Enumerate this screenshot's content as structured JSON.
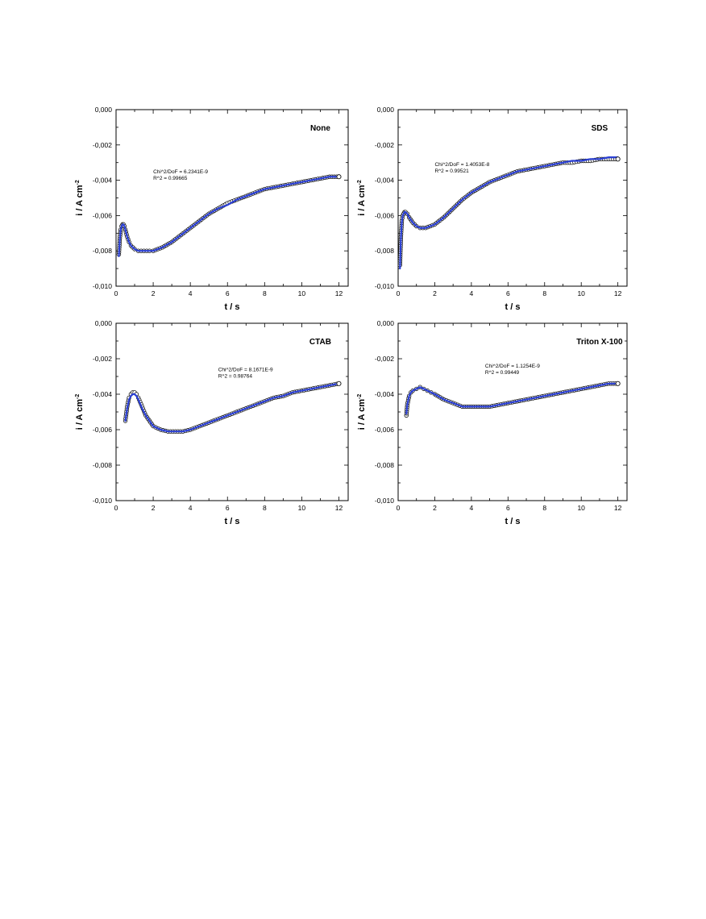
{
  "chart_data": [
    {
      "type": "scatter",
      "panel_label": "None",
      "xlabel": "t / s",
      "ylabel_main": "i / A cm",
      "ylabel_sup": "-2",
      "xlim": [
        0,
        12.5
      ],
      "ylim": [
        -0.01,
        0.0
      ],
      "x_ticks": [
        "0",
        "2",
        "4",
        "6",
        "8",
        "10",
        "12"
      ],
      "y_ticks": [
        "0,000",
        "-0,002",
        "-0,004",
        "-0,006",
        "-0,008",
        "-0,010"
      ],
      "stats_line1": "Chi^2/DoF = 6.2341E-9",
      "stats_line2": "R^2    =  0.99665",
      "colors": {
        "fit": "#2a3fd4",
        "data": "#111111"
      },
      "series": [
        {
          "role": "data",
          "marker": "open-circle",
          "x": [
            0.15,
            0.2,
            0.25,
            0.3,
            0.35,
            0.4,
            0.45,
            0.5,
            0.6,
            0.7,
            0.8,
            1.0,
            1.2,
            1.5,
            1.8,
            2.0,
            2.5,
            3.0,
            3.5,
            4.0,
            4.5,
            5.0,
            5.5,
            6.0,
            6.5,
            7.0,
            7.5,
            8.0,
            8.5,
            9.0,
            9.5,
            10.0,
            10.5,
            11.0,
            11.5,
            12.0
          ],
          "y": [
            -0.0082,
            -0.0073,
            -0.0068,
            -0.0066,
            -0.0065,
            -0.0065,
            -0.0066,
            -0.0068,
            -0.0072,
            -0.0075,
            -0.0077,
            -0.0079,
            -0.008,
            -0.008,
            -0.008,
            -0.008,
            -0.0078,
            -0.0075,
            -0.0071,
            -0.0067,
            -0.0063,
            -0.0059,
            -0.0056,
            -0.0053,
            -0.0051,
            -0.0049,
            -0.0047,
            -0.0045,
            -0.0044,
            -0.0043,
            -0.0042,
            -0.0041,
            -0.004,
            -0.0039,
            -0.0038,
            -0.0038
          ]
        },
        {
          "role": "fit",
          "x": [
            0.15,
            0.2,
            0.25,
            0.3,
            0.35,
            0.4,
            0.45,
            0.5,
            0.6,
            0.7,
            0.8,
            1.0,
            1.2,
            1.5,
            1.8,
            2.0,
            2.5,
            3.0,
            3.5,
            4.0,
            4.5,
            5.0,
            5.5,
            6.0,
            6.5,
            7.0,
            7.5,
            8.0,
            8.5,
            9.0,
            9.5,
            10.0,
            10.5,
            11.0,
            11.5,
            12.0
          ],
          "y": [
            -0.0083,
            -0.0074,
            -0.0068,
            -0.0066,
            -0.0065,
            -0.0065,
            -0.0066,
            -0.0068,
            -0.0072,
            -0.0075,
            -0.0077,
            -0.0079,
            -0.008,
            -0.008,
            -0.008,
            -0.008,
            -0.0078,
            -0.0075,
            -0.0071,
            -0.0067,
            -0.0063,
            -0.0059,
            -0.0056,
            -0.0054,
            -0.0051,
            -0.0049,
            -0.0047,
            -0.0045,
            -0.0044,
            -0.0043,
            -0.0042,
            -0.0041,
            -0.004,
            -0.0039,
            -0.0038,
            -0.0038
          ]
        }
      ]
    },
    {
      "type": "scatter",
      "panel_label": "SDS",
      "xlabel": "t / s",
      "ylabel_main": "i / A cm",
      "ylabel_sup": "-2",
      "xlim": [
        0,
        12.5
      ],
      "ylim": [
        -0.01,
        0.0
      ],
      "x_ticks": [
        "0",
        "2",
        "4",
        "6",
        "8",
        "10",
        "12"
      ],
      "y_ticks": [
        "0,000",
        "-0,002",
        "-0,004",
        "-0,006",
        "-0,008",
        "-0,010"
      ],
      "stats_line1": "Chi^2/DoF = 1.4053E-8",
      "stats_line2": "R^2    =  0.99521",
      "colors": {
        "fit": "#2a3fd4",
        "data": "#111111"
      },
      "series": [
        {
          "role": "data",
          "marker": "open-circle",
          "x": [
            0.1,
            0.15,
            0.2,
            0.25,
            0.3,
            0.35,
            0.4,
            0.5,
            0.6,
            0.8,
            1.0,
            1.2,
            1.5,
            2.0,
            2.5,
            3.0,
            3.5,
            4.0,
            4.5,
            5.0,
            5.5,
            6.0,
            6.5,
            7.0,
            7.5,
            8.0,
            8.5,
            9.0,
            9.5,
            10.0,
            10.5,
            11.0,
            11.5,
            12.0
          ],
          "y": [
            -0.0088,
            -0.0072,
            -0.0063,
            -0.006,
            -0.0059,
            -0.0058,
            -0.0058,
            -0.0059,
            -0.0061,
            -0.0064,
            -0.0066,
            -0.0067,
            -0.0067,
            -0.0065,
            -0.0061,
            -0.0056,
            -0.0051,
            -0.0047,
            -0.0044,
            -0.0041,
            -0.0039,
            -0.0037,
            -0.0035,
            -0.0034,
            -0.0033,
            -0.0032,
            -0.0031,
            -0.003,
            -0.003,
            -0.0029,
            -0.0029,
            -0.0028,
            -0.0028,
            -0.0028
          ]
        },
        {
          "role": "fit",
          "x": [
            0.1,
            0.15,
            0.2,
            0.25,
            0.3,
            0.35,
            0.4,
            0.5,
            0.6,
            0.8,
            1.0,
            1.2,
            1.5,
            2.0,
            2.5,
            3.0,
            3.5,
            4.0,
            4.5,
            5.0,
            5.5,
            6.0,
            6.5,
            7.0,
            7.5,
            8.0,
            8.5,
            9.0,
            9.5,
            10.0,
            10.5,
            11.0,
            11.5,
            12.0
          ],
          "y": [
            -0.009,
            -0.0073,
            -0.0064,
            -0.006,
            -0.0059,
            -0.0058,
            -0.0058,
            -0.0059,
            -0.0061,
            -0.0064,
            -0.0066,
            -0.0067,
            -0.0067,
            -0.0065,
            -0.0061,
            -0.0056,
            -0.0051,
            -0.0047,
            -0.0044,
            -0.0041,
            -0.0039,
            -0.0037,
            -0.0035,
            -0.0034,
            -0.0033,
            -0.0032,
            -0.0031,
            -0.003,
            -0.0029,
            -0.0029,
            -0.0028,
            -0.0028,
            -0.0027,
            -0.0027
          ]
        }
      ]
    },
    {
      "type": "scatter",
      "panel_label": "CTAB",
      "xlabel": "t / s",
      "ylabel_main": "i / A cm",
      "ylabel_sup": "-2",
      "xlim": [
        0,
        12.5
      ],
      "ylim": [
        -0.01,
        0.0
      ],
      "x_ticks": [
        "0",
        "2",
        "4",
        "6",
        "8",
        "10",
        "12"
      ],
      "y_ticks": [
        "0,000",
        "-0,002",
        "-0,004",
        "-0,006",
        "-0,008",
        "-0,010"
      ],
      "stats_line1": "Chi^2/DoF = 8.1671E-9",
      "stats_line2": "R^2    =  0.98764",
      "colors": {
        "fit": "#2a3fd4",
        "data": "#111111"
      },
      "series": [
        {
          "role": "data",
          "marker": "open-circle",
          "x": [
            0.5,
            0.6,
            0.7,
            0.8,
            0.9,
            1.0,
            1.1,
            1.2,
            1.4,
            1.6,
            1.8,
            2.0,
            2.4,
            2.8,
            3.2,
            3.6,
            4.0,
            4.5,
            5.0,
            5.5,
            6.0,
            6.5,
            7.0,
            7.5,
            8.0,
            8.5,
            9.0,
            9.5,
            10.0,
            10.5,
            11.0,
            11.5,
            12.0
          ],
          "y": [
            -0.0055,
            -0.0047,
            -0.0042,
            -0.004,
            -0.0039,
            -0.0039,
            -0.004,
            -0.0042,
            -0.0047,
            -0.0052,
            -0.0055,
            -0.0058,
            -0.006,
            -0.0061,
            -0.0061,
            -0.0061,
            -0.006,
            -0.0058,
            -0.0056,
            -0.0054,
            -0.0052,
            -0.005,
            -0.0048,
            -0.0046,
            -0.0044,
            -0.0042,
            -0.0041,
            -0.0039,
            -0.0038,
            -0.0037,
            -0.0036,
            -0.0035,
            -0.0034
          ]
        },
        {
          "role": "fit",
          "x": [
            0.5,
            0.6,
            0.7,
            0.8,
            0.9,
            1.0,
            1.1,
            1.2,
            1.4,
            1.6,
            1.8,
            2.0,
            2.4,
            2.8,
            3.2,
            3.6,
            4.0,
            4.5,
            5.0,
            5.5,
            6.0,
            6.5,
            7.0,
            7.5,
            8.0,
            8.5,
            9.0,
            9.5,
            10.0,
            10.5,
            11.0,
            11.5,
            12.0
          ],
          "y": [
            -0.0055,
            -0.0048,
            -0.0043,
            -0.0041,
            -0.004,
            -0.004,
            -0.0041,
            -0.0043,
            -0.0048,
            -0.0052,
            -0.0055,
            -0.0058,
            -0.006,
            -0.0061,
            -0.0061,
            -0.0061,
            -0.006,
            -0.0058,
            -0.0056,
            -0.0054,
            -0.0052,
            -0.005,
            -0.0048,
            -0.0046,
            -0.0044,
            -0.0042,
            -0.0041,
            -0.0039,
            -0.0038,
            -0.0037,
            -0.0036,
            -0.0035,
            -0.0034
          ]
        }
      ]
    },
    {
      "type": "scatter",
      "panel_label": "Triton X-100",
      "xlabel": "t / s",
      "ylabel_main": "i / A cm",
      "ylabel_sup": "-2",
      "xlim": [
        0,
        12.5
      ],
      "ylim": [
        -0.01,
        0.0
      ],
      "x_ticks": [
        "0",
        "2",
        "4",
        "6",
        "8",
        "10",
        "12"
      ],
      "y_ticks": [
        "0,000",
        "-0,002",
        "-0,004",
        "-0,006",
        "-0,008",
        "-0,010"
      ],
      "stats_line1": "Chi^2/DoF = 1.1254E-9",
      "stats_line2": "R^2    =  0.99449",
      "colors": {
        "fit": "#2a3fd4",
        "data": "#111111"
      },
      "series": [
        {
          "role": "data",
          "marker": "open-circle",
          "x": [
            0.45,
            0.5,
            0.6,
            0.7,
            0.8,
            1.0,
            1.2,
            1.4,
            1.6,
            1.8,
            2.0,
            2.5,
            3.0,
            3.5,
            4.0,
            4.5,
            5.0,
            5.5,
            6.0,
            6.5,
            7.0,
            7.5,
            8.0,
            8.5,
            9.0,
            9.5,
            10.0,
            10.5,
            11.0,
            11.5,
            12.0
          ],
          "y": [
            -0.0052,
            -0.0046,
            -0.0041,
            -0.0039,
            -0.0038,
            -0.0037,
            -0.0036,
            -0.0037,
            -0.0038,
            -0.0039,
            -0.004,
            -0.0043,
            -0.0045,
            -0.0047,
            -0.0047,
            -0.0047,
            -0.0047,
            -0.0046,
            -0.0045,
            -0.0044,
            -0.0043,
            -0.0042,
            -0.0041,
            -0.004,
            -0.0039,
            -0.0038,
            -0.0037,
            -0.0036,
            -0.0035,
            -0.0034,
            -0.0034
          ]
        },
        {
          "role": "fit",
          "x": [
            0.45,
            0.5,
            0.6,
            0.7,
            0.8,
            1.0,
            1.2,
            1.4,
            1.6,
            1.8,
            2.0,
            2.5,
            3.0,
            3.5,
            4.0,
            4.5,
            5.0,
            5.5,
            6.0,
            6.5,
            7.0,
            7.5,
            8.0,
            8.5,
            9.0,
            9.5,
            10.0,
            10.5,
            11.0,
            11.5,
            12.0
          ],
          "y": [
            -0.0051,
            -0.0046,
            -0.0041,
            -0.0039,
            -0.0038,
            -0.0037,
            -0.0036,
            -0.0037,
            -0.0038,
            -0.0039,
            -0.004,
            -0.0043,
            -0.0045,
            -0.0047,
            -0.0047,
            -0.0047,
            -0.0047,
            -0.0046,
            -0.0045,
            -0.0044,
            -0.0043,
            -0.0042,
            -0.0041,
            -0.004,
            -0.0039,
            -0.0038,
            -0.0037,
            -0.0036,
            -0.0035,
            -0.0034,
            -0.0034
          ]
        }
      ]
    }
  ]
}
